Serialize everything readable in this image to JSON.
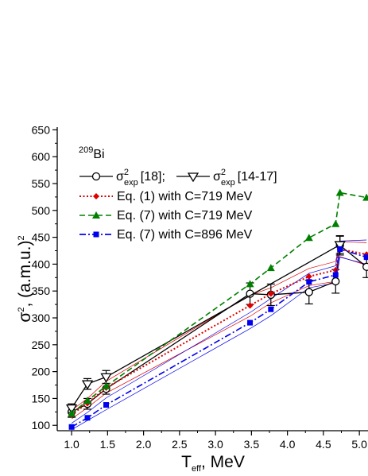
{
  "chart_data": {
    "type": "line",
    "annotation": {
      "mass": "209",
      "element": "Bi"
    },
    "xlabel": {
      "main": "T",
      "sub": "eff",
      "rest": ", MeV"
    },
    "ylabel": {
      "sigma": "σ",
      "sup": "2",
      "rest": ", (a.m.u.)",
      "unit_sup": "2"
    },
    "xlim": [
      0.8,
      5.12
    ],
    "ylim": [
      90,
      655
    ],
    "xticks": [
      "1.0",
      "1.5",
      "2.0",
      "2.5",
      "3.0",
      "3.5",
      "4.0",
      "4.5",
      "5.0"
    ],
    "yticks": [
      "100",
      "150",
      "200",
      "250",
      "300",
      "350",
      "400",
      "450",
      "500",
      "550",
      "600",
      "650"
    ],
    "legend": {
      "exp1_label": "[18];",
      "exp2_label": "[14-17]",
      "sigma": "σ",
      "sup": "2",
      "sub": "exp",
      "eq1": "Eq. (1) with C=719 MeV",
      "eq7a": "Eq. (7) with C=719 MeV",
      "eq7b": "Eq. (7) with C=896 MeV"
    },
    "series": [
      {
        "id": "exp18",
        "name": "σ²exp [18]",
        "color": "#000000",
        "style": "solid",
        "marker": "circle",
        "x": [
          1.0,
          1.22,
          1.48,
          3.48,
          3.77,
          4.3,
          4.67,
          4.73,
          5.1
        ],
        "y": [
          125,
          140,
          168,
          345,
          343,
          348,
          368,
          435,
          395
        ],
        "err": [
          10,
          10,
          10,
          20,
          20,
          22,
          22,
          18,
          20
        ]
      },
      {
        "id": "exp1417",
        "name": "σ²exp [14-17]",
        "color": "#000000",
        "style": "solid",
        "marker": "triangle-down",
        "x": [
          1.0,
          1.22,
          1.48,
          4.73
        ],
        "y": [
          132,
          177,
          190,
          436
        ],
        "err": [
          8,
          10,
          12,
          16
        ]
      },
      {
        "id": "eq1",
        "name": "Eq. (1) with C=719 MeV",
        "color": "#dd0000",
        "style": "dotted",
        "marker": "diamond",
        "x": [
          1.0,
          1.22,
          1.48,
          3.48,
          3.77,
          4.3,
          4.67,
          4.73,
          5.1
        ],
        "y": [
          120,
          141,
          170,
          323,
          345,
          377,
          389,
          428,
          418
        ]
      },
      {
        "id": "eq7a",
        "name": "Eq. (7) with C=719 MeV",
        "color": "#008000",
        "style": "dashed",
        "marker": "triangle-up",
        "x": [
          1.0,
          1.22,
          1.48,
          3.48,
          3.77,
          4.3,
          4.67,
          4.73,
          5.1
        ],
        "y": [
          122,
          146,
          173,
          363,
          393,
          449,
          475,
          533,
          524
        ]
      },
      {
        "id": "eq7b",
        "name": "Eq. (7) with C=896 MeV",
        "color": "#0000ee",
        "style": "dashdot",
        "marker": "square",
        "x": [
          1.0,
          1.22,
          1.48,
          3.48,
          3.77,
          4.3,
          4.67,
          4.73,
          5.1
        ],
        "y": [
          97,
          114,
          138,
          291,
          316,
          367,
          380,
          428,
          413
        ]
      }
    ],
    "bands": [
      {
        "color": "#dd0000",
        "x": [
          1.0,
          1.22,
          1.48,
          3.48,
          3.77,
          4.3,
          4.67,
          4.73,
          5.1
        ],
        "upper": [
          128,
          150,
          182,
          342,
          356,
          392,
          405,
          442,
          440
        ],
        "lower": [
          112,
          133,
          160,
          303,
          328,
          360,
          368,
          414,
          398
        ]
      },
      {
        "color": "#0000ee",
        "x": [
          1.0,
          1.22,
          1.48,
          3.48,
          3.77,
          4.3,
          4.67,
          4.73,
          5.1
        ],
        "upper": [
          104,
          124,
          151,
          310,
          336,
          383,
          397,
          443,
          445
        ],
        "lower": [
          92,
          109,
          129,
          280,
          304,
          356,
          365,
          413,
          400
        ]
      }
    ]
  }
}
